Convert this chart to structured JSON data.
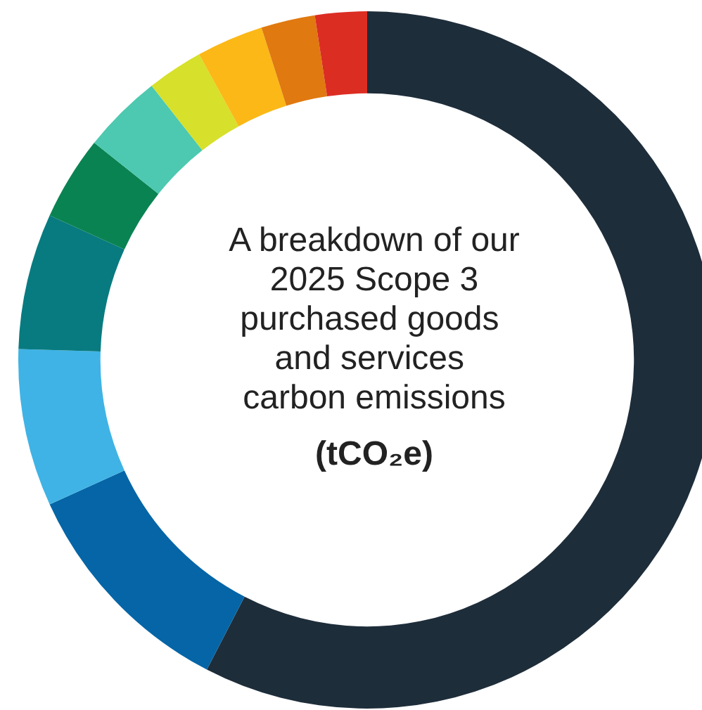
{
  "chart_data": {
    "type": "donut",
    "title": "A breakdown of our 2025 Scope 3 purchased goods and services carbon emissions",
    "subtitle": "(tCO₂e)",
    "categories": [
      null,
      null,
      null,
      null,
      null,
      null,
      null,
      null,
      null,
      null
    ],
    "values": [
      57.6,
      10.6,
      7.3,
      6.3,
      3.9,
      3.7,
      2.6,
      3.1,
      2.5,
      2.4
    ],
    "colors": [
      "#1e2d3a",
      "#0565a6",
      "#3fb3e5",
      "#087b80",
      "#0a8352",
      "#4cc9b0",
      "#d7e02a",
      "#fbb817",
      "#e0790f",
      "#dc2d23"
    ],
    "data_labels": false
  }
}
